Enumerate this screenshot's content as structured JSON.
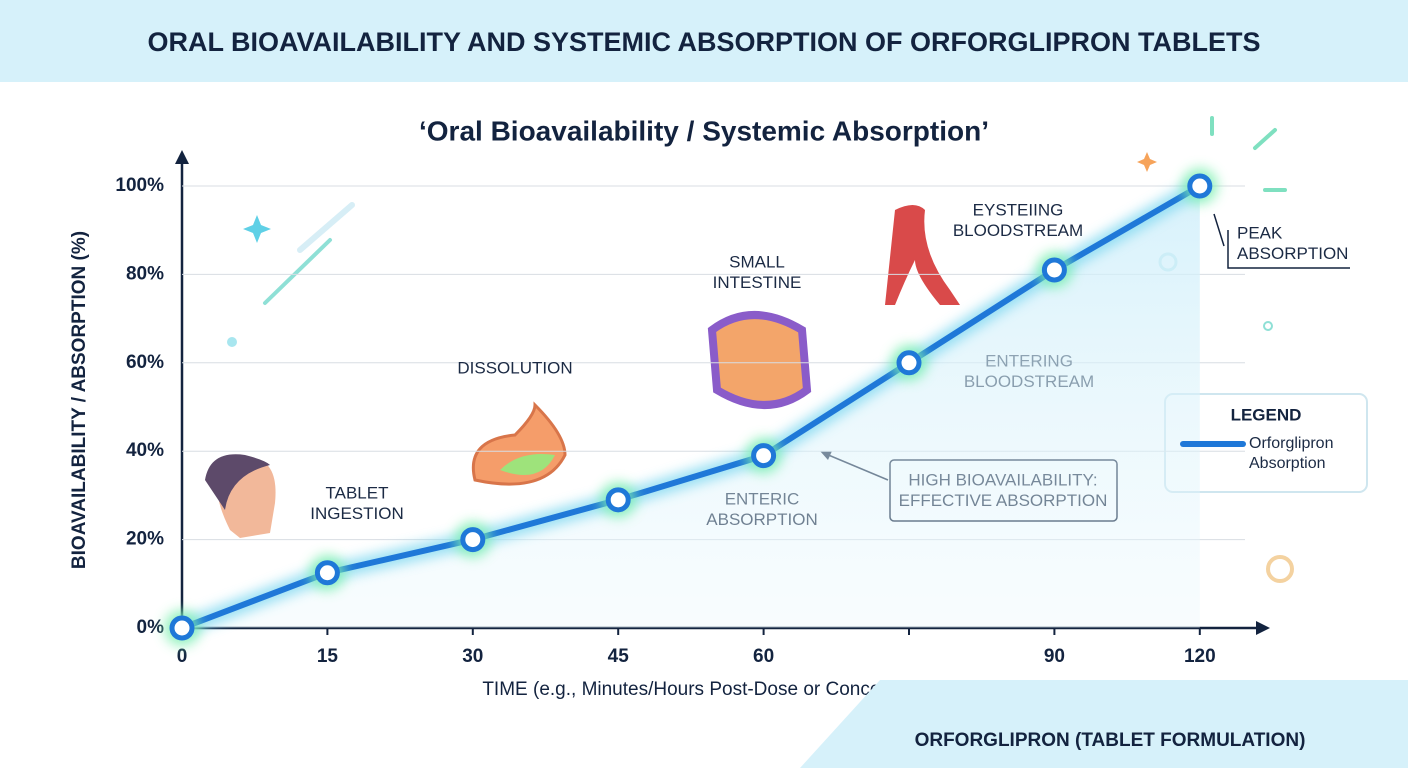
{
  "chart_data": {
    "type": "line",
    "title": "ORAL BIOAVAILABILITY AND SYSTEMIC ABSORPTION OF ORFORGLIPRON TABLETS",
    "subtitle": "‘Oral Bioavailability / Systemic Absorption’",
    "x_label": "TIME (e.g., Minutes/Hours Post-Dose or Conceptually)",
    "y_label": "BIOAVAILABILITY / ABSORPTION (%)",
    "categories": [
      "0",
      "15",
      "30",
      "45",
      "60",
      null,
      "90",
      "120"
    ],
    "series": [
      {
        "name": "Orforglipron Absorption",
        "color": "#1f78d8",
        "values": [
          0,
          12.5,
          20,
          29,
          39,
          60,
          81,
          100
        ]
      }
    ],
    "ylim": [
      0,
      100
    ],
    "yticks": [
      {
        "value": 0,
        "label": "0%"
      },
      {
        "value": 20,
        "label": "20%"
      },
      {
        "value": 40,
        "label": "40%"
      },
      {
        "value": 60,
        "label": "60%"
      },
      {
        "value": 80,
        "label": "80%"
      },
      {
        "value": 100,
        "label": "100%"
      }
    ],
    "grid": true,
    "legend_title": "LEGEND",
    "legend": "right",
    "annotations": [
      {
        "lines": [
          "TABLET",
          "INGESTION"
        ]
      },
      {
        "lines": [
          "DISSOLUTION"
        ]
      },
      {
        "lines": [
          "SMALL",
          "INTESTINE"
        ]
      },
      {
        "lines": [
          "EYSTEIING",
          "BLOODSTREAM"
        ]
      },
      {
        "lines": [
          "ENTERING",
          "BLOODSTREAM"
        ]
      },
      {
        "lines": [
          "ENTERIC",
          "ABSORPTION"
        ]
      },
      {
        "lines": [
          "PEAK",
          "ABSORPTION"
        ]
      },
      {
        "lines": [
          "HIGH BIOAVAILABILITY:",
          "EFFECTIVE ABSORPTION"
        ]
      }
    ],
    "footer": "ORFORGLIPRON (TABLET FORMULATION)"
  }
}
